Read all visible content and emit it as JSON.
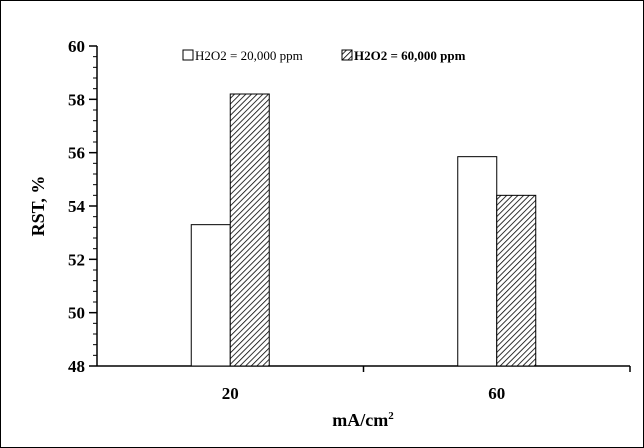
{
  "chart_data": {
    "type": "bar",
    "categories": [
      "20",
      "60"
    ],
    "series": [
      {
        "name": "H2O2 = 20,000 ppm",
        "values": [
          53.3,
          55.85
        ]
      },
      {
        "name": "H2O2 = 60,000 ppm",
        "values": [
          58.2,
          54.4
        ]
      }
    ],
    "xlabel_base": "mA/cm",
    "xlabel_sup": "2",
    "ylabel": "RST, %",
    "ylim": [
      48,
      60
    ],
    "yticks": [
      48,
      50,
      52,
      54,
      56,
      58,
      60
    ],
    "legend_position": "top",
    "grid": false,
    "colors": {
      "series_0_fill": "#ffffff",
      "series_1_fill": "hatched",
      "stroke": "#000000"
    }
  }
}
